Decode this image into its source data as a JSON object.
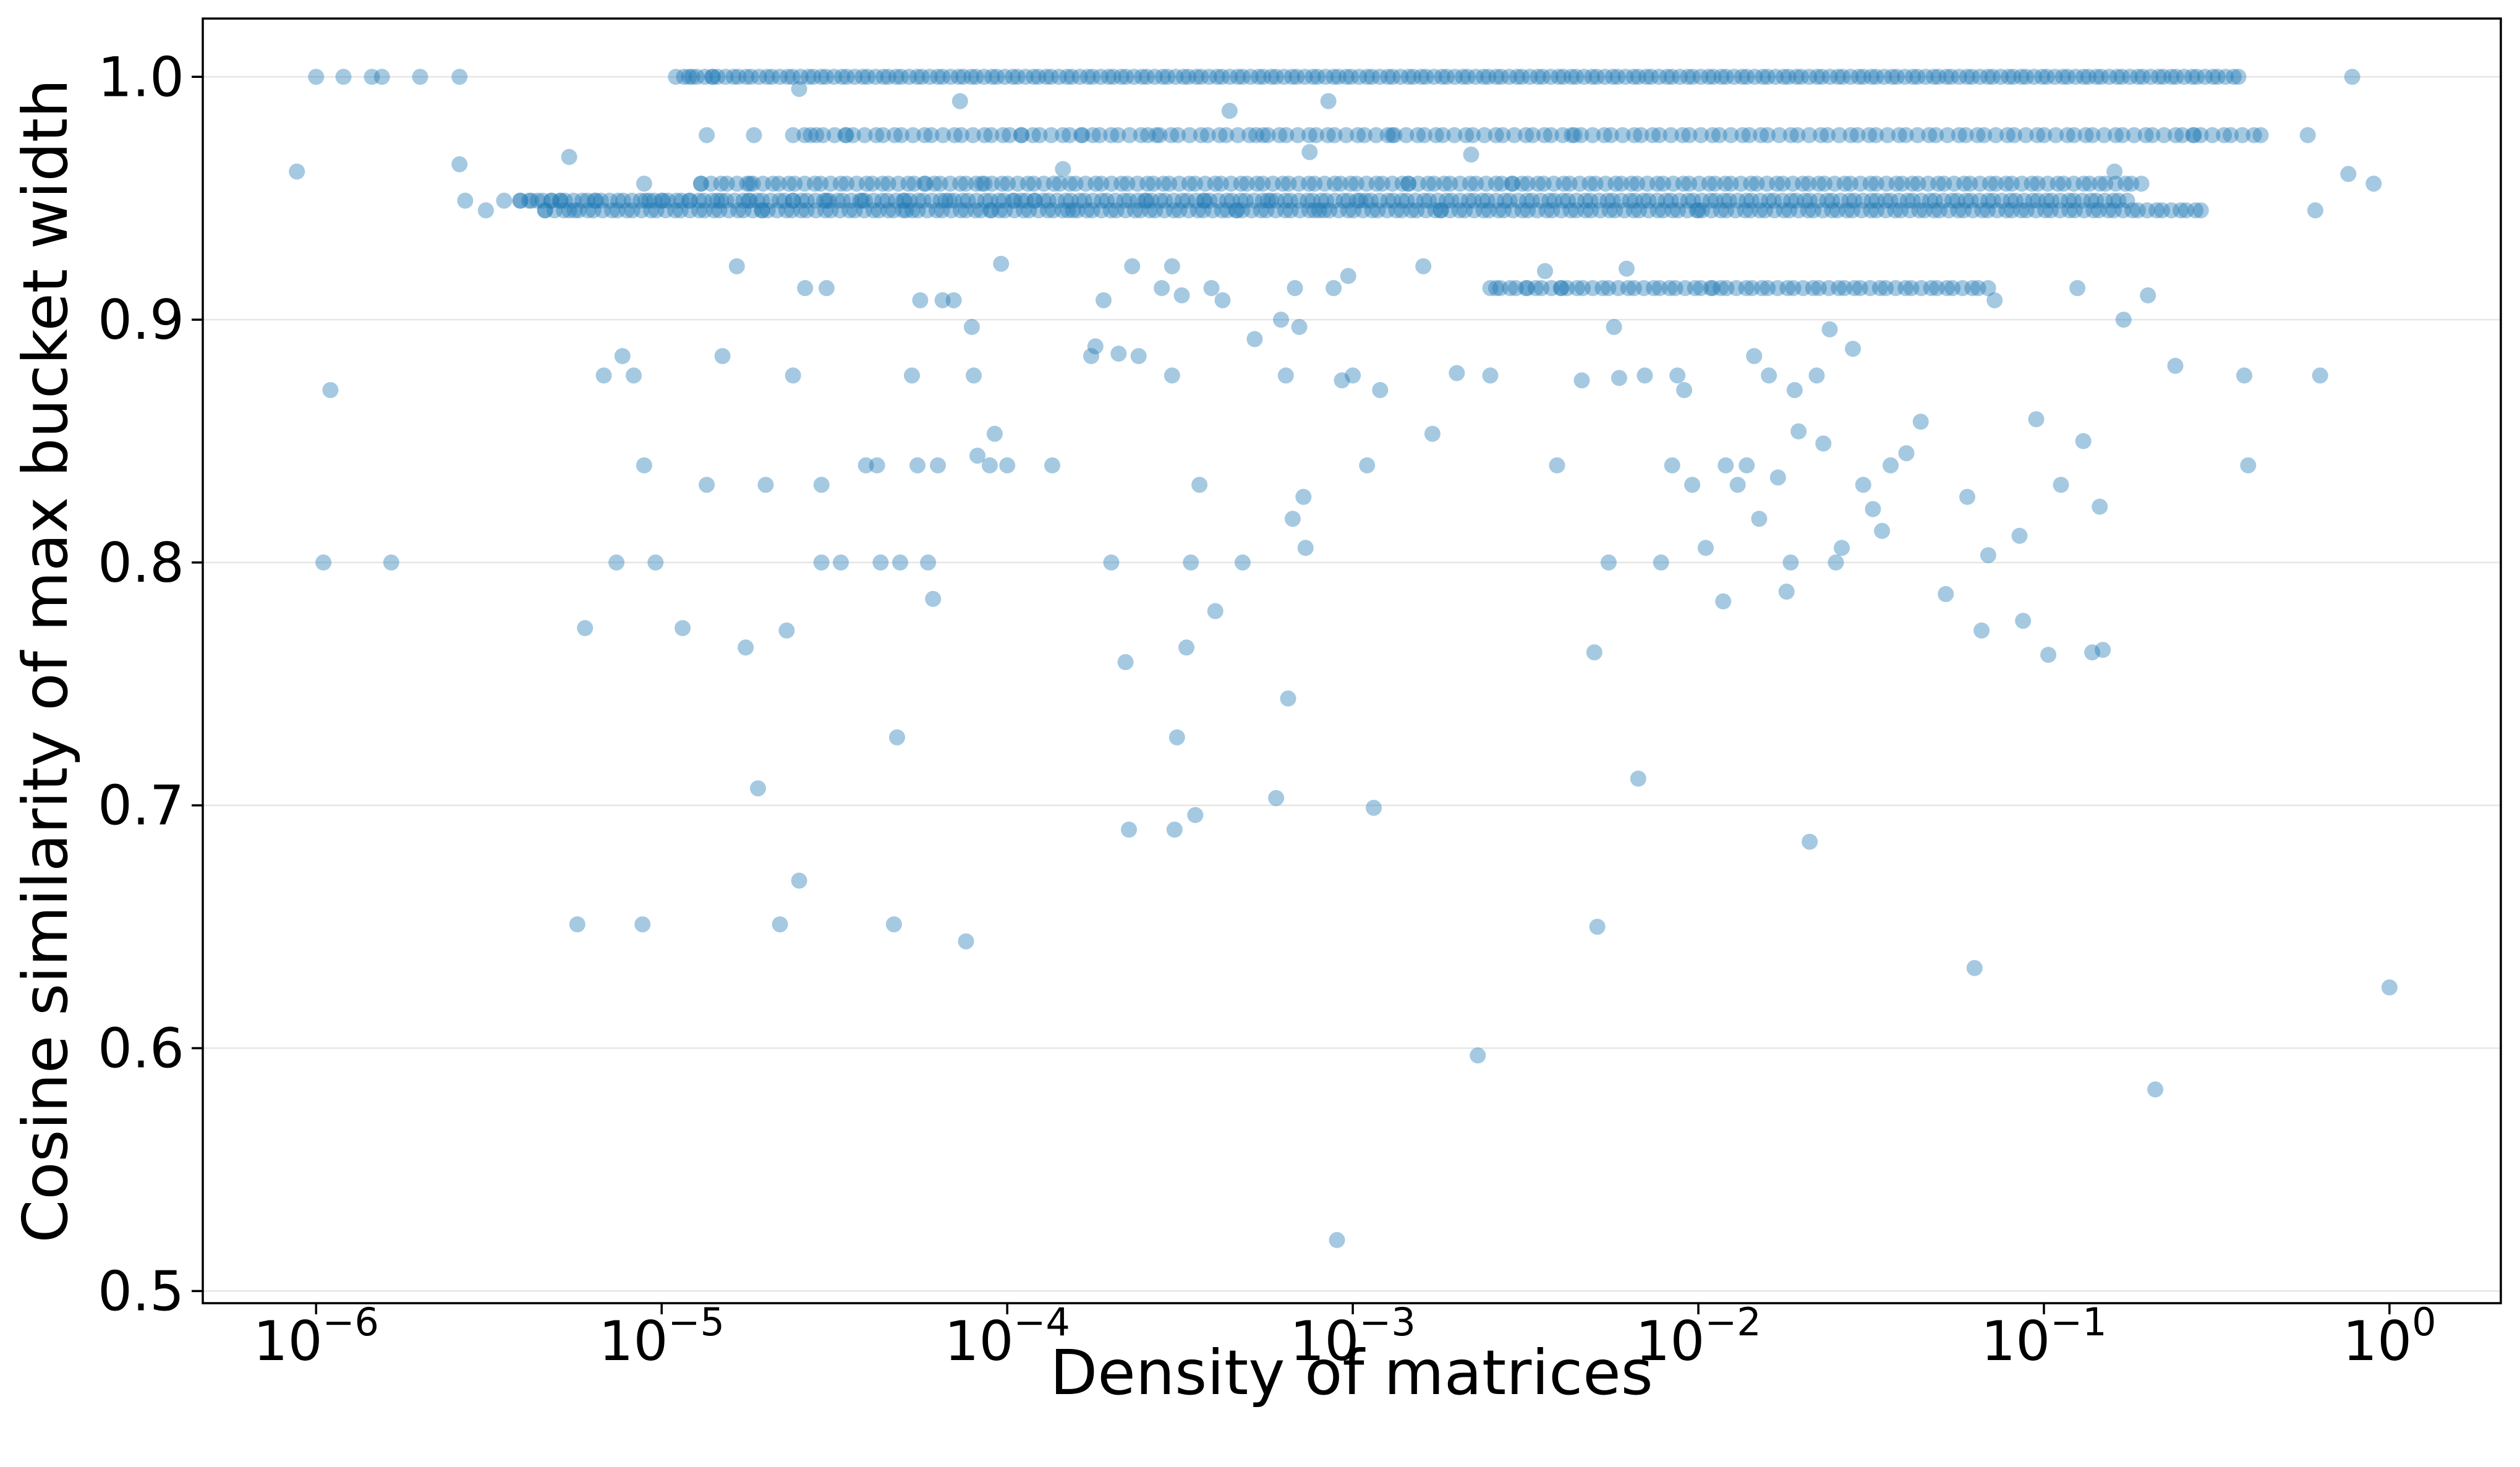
{
  "chart_data": {
    "type": "scatter",
    "title": "",
    "xlabel": "Density of matrices",
    "ylabel": "Cosine similarity of max bucket width",
    "xscale": "log",
    "xlim": [
      4.7e-07,
      2.1
    ],
    "ylim": [
      0.495,
      1.024
    ],
    "xticks": [
      {
        "value": 1e-06,
        "base": "10",
        "exp": "−6"
      },
      {
        "value": 1e-05,
        "base": "10",
        "exp": "−5"
      },
      {
        "value": 0.0001,
        "base": "10",
        "exp": "−4"
      },
      {
        "value": 0.001,
        "base": "10",
        "exp": "−3"
      },
      {
        "value": 0.01,
        "base": "10",
        "exp": "−2"
      },
      {
        "value": 0.1,
        "base": "10",
        "exp": "−1"
      },
      {
        "value": 1,
        "base": "10",
        "exp": "0"
      }
    ],
    "yticks": [
      {
        "value": 0.5,
        "label": "0.5"
      },
      {
        "value": 0.6,
        "label": "0.6"
      },
      {
        "value": 0.7,
        "label": "0.7"
      },
      {
        "value": 0.8,
        "label": "0.8"
      },
      {
        "value": 0.9,
        "label": "0.9"
      },
      {
        "value": 1.0,
        "label": "1.0"
      }
    ],
    "grid": "horizontal",
    "marker_color": "#1f77b4",
    "marker_alpha": 0.4,
    "points": [
      [
        8.8e-07,
        0.961
      ],
      [
        1e-06,
        1.0
      ],
      [
        1.05e-06,
        0.8
      ],
      [
        1.1e-06,
        0.871
      ],
      [
        1.2e-06,
        1.0
      ],
      [
        1.45e-06,
        1.0
      ],
      [
        1.55e-06,
        1.0
      ],
      [
        1.65e-06,
        0.8
      ],
      [
        2e-06,
        1.0
      ],
      [
        2.6e-06,
        1.0
      ],
      [
        2.6e-06,
        0.964
      ],
      [
        2.7e-06,
        0.949
      ],
      [
        3.1e-06,
        0.945
      ],
      [
        3.5e-06,
        0.949
      ],
      [
        3.9e-06,
        0.949
      ],
      [
        4.2e-06,
        0.949
      ],
      [
        4.6e-06,
        0.945
      ],
      [
        4.8e-06,
        0.949
      ],
      [
        5.1e-06,
        0.949
      ],
      [
        5.4e-06,
        0.967
      ],
      [
        5.6e-06,
        0.945
      ],
      [
        5.7e-06,
        0.651
      ],
      [
        6e-06,
        0.773
      ],
      [
        6.4e-06,
        0.949
      ],
      [
        6.8e-06,
        0.877
      ],
      [
        7.4e-06,
        0.8
      ],
      [
        7.7e-06,
        0.885
      ],
      [
        8.3e-06,
        0.877
      ],
      [
        8.8e-06,
        0.651
      ],
      [
        8.9e-06,
        0.84
      ],
      [
        8.9e-06,
        0.956
      ],
      [
        9.2e-06,
        0.949
      ],
      [
        9.6e-06,
        0.8
      ],
      [
        1e-05,
        0.949
      ],
      [
        1.15e-05,
        0.773
      ],
      [
        1.2e-05,
        0.949
      ],
      [
        1.2e-05,
        1.0
      ],
      [
        1.3e-05,
        0.956
      ],
      [
        1.35e-05,
        0.832
      ],
      [
        1.35e-05,
        0.976
      ],
      [
        1.4e-05,
        1.0
      ],
      [
        1.45e-05,
        0.949
      ],
      [
        1.5e-05,
        0.885
      ],
      [
        1.65e-05,
        0.922
      ],
      [
        1.75e-05,
        0.765
      ],
      [
        1.8e-05,
        0.949
      ],
      [
        1.8e-05,
        0.956
      ],
      [
        1.85e-05,
        0.976
      ],
      [
        1.9e-05,
        0.707
      ],
      [
        1.95e-05,
        0.945
      ],
      [
        2e-05,
        0.832
      ],
      [
        2.2e-05,
        0.651
      ],
      [
        2.3e-05,
        0.772
      ],
      [
        2.4e-05,
        0.949
      ],
      [
        2.4e-05,
        0.877
      ],
      [
        2.5e-05,
        0.995
      ],
      [
        2.5e-05,
        0.669
      ],
      [
        2.6e-05,
        0.913
      ],
      [
        2.7e-05,
        0.976
      ],
      [
        2.9e-05,
        0.8
      ],
      [
        2.9e-05,
        0.832
      ],
      [
        3e-05,
        0.913
      ],
      [
        3e-05,
        0.949
      ],
      [
        3.3e-05,
        0.8
      ],
      [
        3.4e-05,
        0.976
      ],
      [
        3.8e-05,
        0.949
      ],
      [
        3.9e-05,
        0.84
      ],
      [
        4.2e-05,
        0.84
      ],
      [
        4.3e-05,
        0.8
      ],
      [
        4.7e-05,
        0.651
      ],
      [
        4.8e-05,
        0.728
      ],
      [
        4.9e-05,
        0.8
      ],
      [
        5e-05,
        0.949
      ],
      [
        5.1e-05,
        0.945
      ],
      [
        5.3e-05,
        0.877
      ],
      [
        5.5e-05,
        0.84
      ],
      [
        5.6e-05,
        0.908
      ],
      [
        5.8e-05,
        0.956
      ],
      [
        5.9e-05,
        0.8
      ],
      [
        6.1e-05,
        0.785
      ],
      [
        6.3e-05,
        0.84
      ],
      [
        6.5e-05,
        0.908
      ],
      [
        6.8e-05,
        0.949
      ],
      [
        7e-05,
        0.908
      ],
      [
        7.3e-05,
        0.99
      ],
      [
        7.6e-05,
        0.644
      ],
      [
        7.9e-05,
        0.897
      ],
      [
        8e-05,
        0.877
      ],
      [
        8.2e-05,
        0.844
      ],
      [
        8.6e-05,
        0.956
      ],
      [
        8.9e-05,
        0.84
      ],
      [
        9e-05,
        0.945
      ],
      [
        9.2e-05,
        0.853
      ],
      [
        9.6e-05,
        0.923
      ],
      [
        0.0001,
        0.84
      ],
      [
        0.000105,
        0.949
      ],
      [
        0.00011,
        0.976
      ],
      [
        0.00012,
        0.949
      ],
      [
        0.000135,
        0.84
      ],
      [
        0.000145,
        0.962
      ],
      [
        0.000155,
        0.945
      ],
      [
        0.000165,
        0.976
      ],
      [
        0.000175,
        0.885
      ],
      [
        0.00018,
        0.889
      ],
      [
        0.00019,
        0.908
      ],
      [
        0.0002,
        0.8
      ],
      [
        0.00021,
        0.886
      ],
      [
        0.00022,
        0.759
      ],
      [
        0.000225,
        0.69
      ],
      [
        0.00023,
        0.922
      ],
      [
        0.00024,
        0.885
      ],
      [
        0.00025,
        0.949
      ],
      [
        0.00027,
        0.976
      ],
      [
        0.00028,
        0.913
      ],
      [
        0.0003,
        0.922
      ],
      [
        0.0003,
        0.877
      ],
      [
        0.000305,
        0.69
      ],
      [
        0.00031,
        0.728
      ],
      [
        0.00032,
        0.91
      ],
      [
        0.00033,
        0.765
      ],
      [
        0.00034,
        0.8
      ],
      [
        0.00035,
        0.696
      ],
      [
        0.00036,
        0.832
      ],
      [
        0.00037,
        0.949
      ],
      [
        0.00039,
        0.913
      ],
      [
        0.0004,
        0.78
      ],
      [
        0.00042,
        0.908
      ],
      [
        0.00044,
        0.986
      ],
      [
        0.00046,
        0.945
      ],
      [
        0.00048,
        0.8
      ],
      [
        0.00052,
        0.892
      ],
      [
        0.00055,
        0.976
      ],
      [
        0.00058,
        0.949
      ],
      [
        0.0006,
        0.703
      ],
      [
        0.00062,
        0.9
      ],
      [
        0.00064,
        0.877
      ],
      [
        0.00065,
        0.744
      ],
      [
        0.00067,
        0.818
      ],
      [
        0.00068,
        0.913
      ],
      [
        0.0007,
        0.897
      ],
      [
        0.00072,
        0.827
      ],
      [
        0.00073,
        0.806
      ],
      [
        0.00075,
        0.969
      ],
      [
        0.0008,
        0.945
      ],
      [
        0.00085,
        0.99
      ],
      [
        0.00088,
        0.913
      ],
      [
        0.0009,
        0.521
      ],
      [
        0.00093,
        0.875
      ],
      [
        0.00097,
        0.918
      ],
      [
        0.001,
        0.877
      ],
      [
        0.00105,
        0.949
      ],
      [
        0.0011,
        0.84
      ],
      [
        0.00115,
        0.699
      ],
      [
        0.0012,
        0.871
      ],
      [
        0.0013,
        0.976
      ],
      [
        0.00145,
        0.956
      ],
      [
        0.0016,
        0.922
      ],
      [
        0.0017,
        0.853
      ],
      [
        0.0018,
        0.945
      ],
      [
        0.002,
        0.878
      ],
      [
        0.0022,
        0.968
      ],
      [
        0.0023,
        0.597
      ],
      [
        0.0025,
        0.877
      ],
      [
        0.0026,
        0.913
      ],
      [
        0.0029,
        0.956
      ],
      [
        0.0032,
        0.913
      ],
      [
        0.0036,
        0.92
      ],
      [
        0.0039,
        0.84
      ],
      [
        0.004,
        0.913
      ],
      [
        0.0043,
        0.976
      ],
      [
        0.0046,
        0.875
      ],
      [
        0.005,
        0.763
      ],
      [
        0.0051,
        0.65
      ],
      [
        0.0055,
        0.8
      ],
      [
        0.0057,
        0.897
      ],
      [
        0.0059,
        0.876
      ],
      [
        0.0062,
        0.921
      ],
      [
        0.0067,
        0.711
      ],
      [
        0.007,
        0.877
      ],
      [
        0.0078,
        0.8
      ],
      [
        0.0084,
        0.84
      ],
      [
        0.0087,
        0.877
      ],
      [
        0.0091,
        0.871
      ],
      [
        0.0096,
        0.832
      ],
      [
        0.01,
        0.945
      ],
      [
        0.0105,
        0.806
      ],
      [
        0.011,
        0.913
      ],
      [
        0.0118,
        0.784
      ],
      [
        0.012,
        0.84
      ],
      [
        0.013,
        0.832
      ],
      [
        0.0138,
        0.84
      ],
      [
        0.0145,
        0.885
      ],
      [
        0.015,
        0.818
      ],
      [
        0.016,
        0.877
      ],
      [
        0.017,
        0.835
      ],
      [
        0.018,
        0.788
      ],
      [
        0.0185,
        0.8
      ],
      [
        0.019,
        0.871
      ],
      [
        0.0195,
        0.854
      ],
      [
        0.021,
        0.685
      ],
      [
        0.022,
        0.877
      ],
      [
        0.023,
        0.849
      ],
      [
        0.024,
        0.896
      ],
      [
        0.025,
        0.8
      ],
      [
        0.026,
        0.806
      ],
      [
        0.028,
        0.888
      ],
      [
        0.03,
        0.832
      ],
      [
        0.032,
        0.822
      ],
      [
        0.034,
        0.813
      ],
      [
        0.036,
        0.84
      ],
      [
        0.04,
        0.845
      ],
      [
        0.044,
        0.858
      ],
      [
        0.052,
        0.787
      ],
      [
        0.06,
        0.827
      ],
      [
        0.063,
        0.633
      ],
      [
        0.066,
        0.772
      ],
      [
        0.069,
        0.803
      ],
      [
        0.072,
        0.908
      ],
      [
        0.085,
        0.811
      ],
      [
        0.087,
        0.776
      ],
      [
        0.095,
        0.859
      ],
      [
        0.103,
        0.762
      ],
      [
        0.112,
        0.832
      ],
      [
        0.125,
        0.913
      ],
      [
        0.13,
        0.85
      ],
      [
        0.138,
        0.763
      ],
      [
        0.145,
        0.823
      ],
      [
        0.148,
        0.764
      ],
      [
        0.16,
        0.961
      ],
      [
        0.17,
        0.9
      ],
      [
        0.2,
        0.91
      ],
      [
        0.21,
        0.583
      ],
      [
        0.24,
        0.881
      ],
      [
        0.27,
        0.976
      ],
      [
        0.38,
        0.877
      ],
      [
        0.39,
        0.84
      ],
      [
        0.58,
        0.976
      ],
      [
        0.61,
        0.945
      ],
      [
        0.63,
        0.877
      ],
      [
        0.76,
        0.96
      ],
      [
        0.78,
        1.0
      ],
      [
        0.9,
        0.956
      ],
      [
        1.0,
        0.625
      ]
    ],
    "dense_rows": [
      {
        "y": 1.0,
        "from": 1.1e-05,
        "to": 0.38,
        "count": 230
      },
      {
        "y": 0.976,
        "from": 2.4e-05,
        "to": 0.45,
        "count": 150
      },
      {
        "y": 0.956,
        "from": 1.3e-05,
        "to": 0.2,
        "count": 170
      },
      {
        "y": 0.949,
        "from": 3.9e-06,
        "to": 0.18,
        "count": 220
      },
      {
        "y": 0.945,
        "from": 4.6e-06,
        "to": 0.3,
        "count": 210
      },
      {
        "y": 0.913,
        "from": 0.0025,
        "to": 0.072,
        "count": 60
      }
    ]
  }
}
